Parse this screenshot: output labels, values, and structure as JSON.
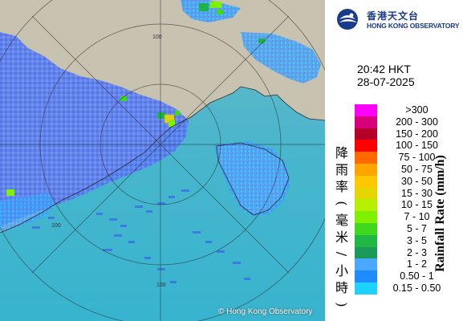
{
  "header": {
    "org_zh": "香港天文台",
    "org_en": "HONG KONG OBSERVATORY"
  },
  "time": {
    "time": "20:42 HKT",
    "date": "28-07-2025"
  },
  "legend": {
    "title_zh": "降雨率(毫米/小時)",
    "title_en": "Rainfall Rate (mm/h)",
    "items": [
      {
        "label": ">300",
        "color": "#ff00ff"
      },
      {
        "label": "200 - 300",
        "color": "#d6007b"
      },
      {
        "label": "150 - 200",
        "color": "#b5002a"
      },
      {
        "label": "100 - 150",
        "color": "#ff0000"
      },
      {
        "label": "75 - 100",
        "color": "#ff6a00"
      },
      {
        "label": "50 - 75",
        "color": "#ffa500"
      },
      {
        "label": "30 - 50",
        "color": "#ffc800"
      },
      {
        "label": "15 - 30",
        "color": "#e6d600"
      },
      {
        "label": "10 - 15",
        "color": "#b7f000"
      },
      {
        "label": "7 - 10",
        "color": "#7ef000"
      },
      {
        "label": "5 - 7",
        "color": "#3fd81c"
      },
      {
        "label": "3 - 5",
        "color": "#20b845"
      },
      {
        "label": "2 - 3",
        "color": "#1a9a5a"
      },
      {
        "label": "1 - 2",
        "color": "#4aa8ff"
      },
      {
        "label": "0.50 - 1",
        "color": "#1e8cff"
      },
      {
        "label": "0.15 - 0.50",
        "color": "#1ed2ff"
      }
    ]
  },
  "map": {
    "copyright": "© Hong Kong Observatory",
    "range_rings": [
      "100",
      "100",
      "100"
    ],
    "colors": {
      "sea": "#45b4c8",
      "land": "#c9c3b2",
      "rain_light": "#3a90ff",
      "rain_medium": "#1fb24a",
      "rain_heavy": "#e0d000"
    }
  }
}
